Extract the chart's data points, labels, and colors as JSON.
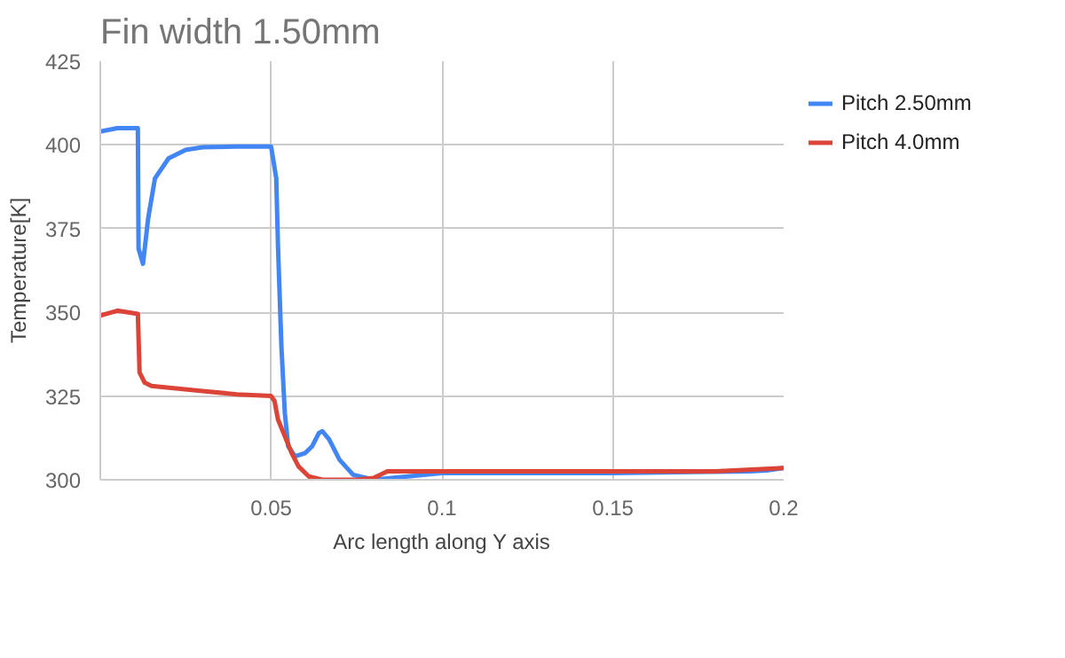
{
  "chart_data": {
    "type": "line",
    "title": "Fin width 1.50mm",
    "xlabel": "Arc length along Y axis",
    "ylabel": "Temperature[K]",
    "xlim": [
      0,
      0.2
    ],
    "xticks": [
      0.05,
      0.1,
      0.15,
      0.2
    ],
    "ylim": [
      300,
      425
    ],
    "yticks": [
      300,
      325,
      350,
      375,
      400,
      425
    ],
    "grid": true,
    "legend": "top right",
    "line_style": "solid",
    "series": [
      {
        "name": "Pitch 2.50mm",
        "color": "#4285f4",
        "x": [
          0,
          0.005,
          0.011,
          0.0112,
          0.0125,
          0.014,
          0.016,
          0.02,
          0.025,
          0.03,
          0.04,
          0.05,
          0.0515,
          0.052,
          0.053,
          0.054,
          0.055,
          0.057,
          0.06,
          0.062,
          0.064,
          0.065,
          0.067,
          0.07,
          0.074,
          0.08,
          0.09,
          0.1,
          0.15,
          0.19,
          0.195,
          0.2
        ],
        "values": [
          404,
          405,
          405,
          369,
          364.5,
          378,
          390,
          396,
          398.5,
          399.3,
          399.5,
          399.5,
          390,
          370,
          340,
          320,
          310,
          307,
          308,
          310,
          314,
          314.5,
          312,
          306,
          301.5,
          300,
          301,
          302,
          302,
          302.5,
          302.8,
          303.5
        ]
      },
      {
        "name": "Pitch 4.0mm",
        "color": "#db4437",
        "x": [
          0,
          0.005,
          0.011,
          0.0115,
          0.013,
          0.015,
          0.03,
          0.04,
          0.05,
          0.051,
          0.052,
          0.054,
          0.056,
          0.058,
          0.061,
          0.065,
          0.075,
          0.08,
          0.084,
          0.1,
          0.18,
          0.2
        ],
        "values": [
          349,
          350.5,
          349.5,
          332,
          329,
          328,
          326.5,
          325.5,
          325,
          323.5,
          318,
          313,
          308,
          304,
          301,
          300,
          300,
          300.5,
          302.5,
          302.5,
          302.5,
          303.5
        ]
      }
    ]
  }
}
